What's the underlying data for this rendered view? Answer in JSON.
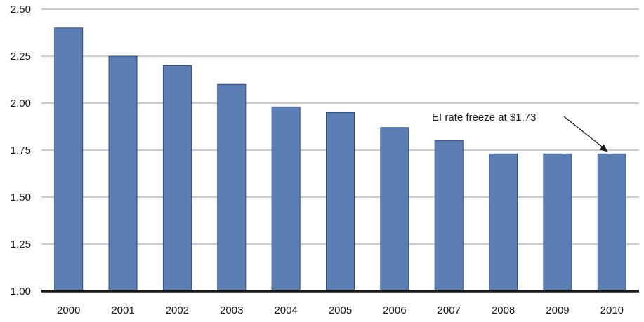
{
  "chart_data": {
    "type": "bar",
    "title": "",
    "xlabel": "",
    "ylabel": "",
    "categories": [
      "2000",
      "2001",
      "2002",
      "2003",
      "2004",
      "2005",
      "2006",
      "2007",
      "2008",
      "2009",
      "2010"
    ],
    "values": [
      2.4,
      2.25,
      2.2,
      2.1,
      1.98,
      1.95,
      1.87,
      1.8,
      1.73,
      1.73,
      1.73
    ],
    "ylim": [
      1.0,
      2.5
    ],
    "yticks": [
      "1.00",
      "1.25",
      "1.50",
      "1.75",
      "2.00",
      "2.25",
      "2.50"
    ],
    "grid": true,
    "legend": "none",
    "annotation": {
      "text": "EI rate freeze at $1.73",
      "target_category": "2010"
    },
    "colors": {
      "bar_fill": "#5b7fb5",
      "bar_stroke": "#2e4a78",
      "grid": "#9a9a9a",
      "axis": "#1a1a1a"
    }
  }
}
